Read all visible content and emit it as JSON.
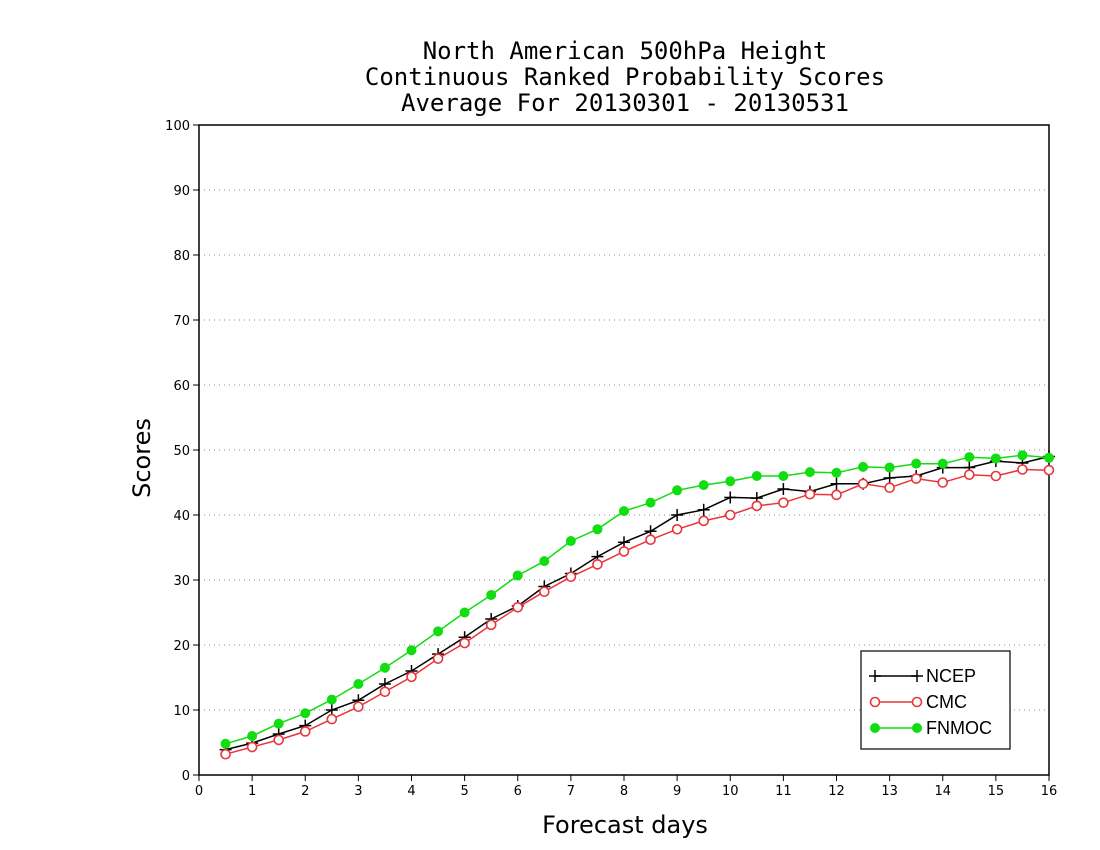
{
  "chart_data": {
    "type": "line",
    "title": [
      "North American 500hPa Height",
      "Continuous Ranked Probability Scores",
      "Average For 20130301 - 20130531"
    ],
    "xlabel": "Forecast days",
    "ylabel": "Scores",
    "xlim": [
      0,
      16
    ],
    "ylim": [
      0,
      100
    ],
    "xticks": [
      0,
      1,
      2,
      3,
      4,
      5,
      6,
      7,
      8,
      9,
      10,
      11,
      12,
      13,
      14,
      15,
      16
    ],
    "yticks": [
      0,
      10,
      20,
      30,
      40,
      50,
      60,
      70,
      80,
      90,
      100
    ],
    "grid": "horizontal dotted",
    "legend_position": "bottom-right",
    "x": [
      0.5,
      1,
      1.5,
      2,
      2.5,
      3,
      3.5,
      4,
      4.5,
      5,
      5.5,
      6,
      6.5,
      7,
      7.5,
      8,
      8.5,
      9,
      9.5,
      10,
      10.5,
      11,
      11.5,
      12,
      12.5,
      13,
      13.5,
      14,
      14.5,
      15,
      15.5,
      16
    ],
    "series": [
      {
        "name": "NCEP",
        "color": "#000000",
        "marker": "plus",
        "values": [
          3.9,
          4.9,
          6.3,
          7.6,
          10.0,
          11.5,
          14.0,
          16.0,
          18.6,
          21.2,
          24.0,
          26.0,
          29.0,
          31.0,
          33.6,
          35.8,
          37.5,
          40.0,
          40.8,
          42.7,
          42.6,
          44.0,
          43.6,
          44.8,
          44.8,
          45.7,
          46.0,
          47.3,
          47.3,
          48.3,
          48.0,
          49.0
        ]
      },
      {
        "name": "CMC",
        "color": "#e8363a",
        "marker": "open-circle",
        "values": [
          3.2,
          4.3,
          5.4,
          6.7,
          8.6,
          10.5,
          12.8,
          15.1,
          17.9,
          20.3,
          23.1,
          25.8,
          28.2,
          30.5,
          32.4,
          34.4,
          36.2,
          37.8,
          39.1,
          40.0,
          41.4,
          41.9,
          43.2,
          43.1,
          44.8,
          44.2,
          45.6,
          45.0,
          46.2,
          46.0,
          47.0,
          46.9
        ]
      },
      {
        "name": "FNMOC",
        "color": "#11dd11",
        "marker": "filled-circle",
        "values": [
          4.8,
          6.0,
          7.9,
          9.5,
          11.6,
          14.0,
          16.5,
          19.2,
          22.1,
          25.0,
          27.7,
          30.7,
          32.9,
          36.0,
          37.8,
          40.6,
          41.9,
          43.8,
          44.6,
          45.2,
          46.0,
          46.0,
          46.6,
          46.5,
          47.4,
          47.3,
          47.9,
          47.9,
          48.9,
          48.7,
          49.2,
          48.8
        ]
      }
    ]
  }
}
